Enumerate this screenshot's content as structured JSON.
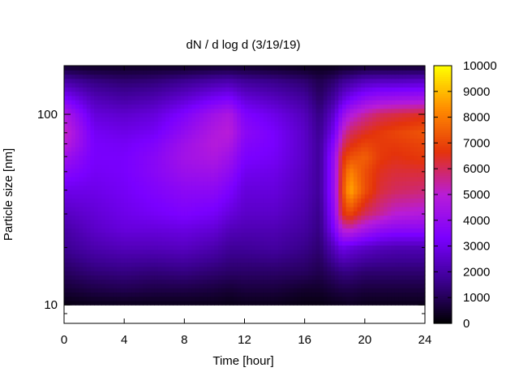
{
  "chart_data": {
    "type": "heatmap",
    "title": "dN / d log d (3/19/19)",
    "xlabel": "Time [hour]",
    "ylabel": "Particle size [nm]",
    "xlim": [
      0,
      24
    ],
    "ylim": [
      8,
      180
    ],
    "y_scale": "log",
    "x_ticks": [
      "0",
      "4",
      "8",
      "12",
      "16",
      "20",
      "24"
    ],
    "x_tick_values": [
      0,
      4,
      8,
      12,
      16,
      20,
      24
    ],
    "y_ticks": [
      "10",
      "100"
    ],
    "y_tick_values": [
      10,
      100
    ],
    "colorbar": {
      "range": [
        0,
        10000
      ],
      "ticks": [
        "0",
        "1000",
        "2000",
        "3000",
        "4000",
        "5000",
        "6000",
        "7000",
        "8000",
        "9000",
        "10000"
      ],
      "tick_values": [
        0,
        1000,
        2000,
        3000,
        4000,
        5000,
        6000,
        7000,
        8000,
        9000,
        10000
      ],
      "colormap": "gnuplot",
      "colors": [
        "#000000",
        "#3b0090",
        "#7a00ff",
        "#b81cd8",
        "#e4330b",
        "#ff8c00",
        "#ffff00"
      ]
    },
    "times": [
      0,
      2,
      4,
      6,
      8,
      10,
      11,
      12,
      14,
      16,
      17,
      18,
      18.5,
      19,
      20,
      21,
      22,
      24
    ],
    "sizes": [
      10,
      12,
      15,
      20,
      25,
      30,
      40,
      50,
      60,
      70,
      80,
      100,
      120,
      150,
      180
    ],
    "values": [
      [
        200,
        300,
        300,
        300,
        300,
        300,
        250,
        300,
        300,
        200,
        200,
        300,
        300,
        400,
        300,
        300,
        300,
        300
      ],
      [
        600,
        800,
        900,
        800,
        800,
        700,
        600,
        700,
        700,
        500,
        500,
        700,
        800,
        800,
        700,
        700,
        700,
        700
      ],
      [
        1100,
        1400,
        1500,
        1400,
        1500,
        1300,
        1200,
        1200,
        1200,
        1100,
        900,
        1300,
        1500,
        1500,
        1300,
        1300,
        1300,
        1300
      ],
      [
        1700,
        2100,
        2300,
        2300,
        2400,
        2100,
        1800,
        1800,
        1900,
        1600,
        1300,
        2400,
        3000,
        2800,
        2500,
        2300,
        2200,
        2200
      ],
      [
        2000,
        2500,
        2800,
        2800,
        2900,
        2700,
        2300,
        2200,
        2200,
        1900,
        1500,
        3500,
        5000,
        5200,
        4500,
        4000,
        3800,
        3800
      ],
      [
        2400,
        2700,
        3000,
        3200,
        3400,
        3200,
        2800,
        2500,
        2500,
        2100,
        1600,
        4000,
        6500,
        7000,
        6000,
        5500,
        5000,
        4800
      ],
      [
        3000,
        3000,
        3200,
        3500,
        3800,
        3800,
        3400,
        2800,
        2800,
        2300,
        1800,
        4300,
        7000,
        8800,
        7200,
        6300,
        6000,
        5800
      ],
      [
        3700,
        3200,
        3300,
        3700,
        4200,
        4300,
        3900,
        3100,
        3000,
        2400,
        1800,
        4300,
        6800,
        8200,
        7200,
        6500,
        6300,
        6300
      ],
      [
        4300,
        3300,
        3300,
        3700,
        4400,
        4700,
        4300,
        3400,
        3200,
        2500,
        1800,
        4200,
        6500,
        7200,
        7500,
        6800,
        6600,
        6800
      ],
      [
        5000,
        3300,
        3200,
        3500,
        4300,
        4900,
        4700,
        3600,
        3300,
        2500,
        1800,
        3800,
        5800,
        6500,
        7000,
        6800,
        6800,
        7000
      ],
      [
        5300,
        3200,
        3000,
        3200,
        4000,
        4800,
        5000,
        3800,
        3300,
        2500,
        1700,
        3300,
        5200,
        6000,
        6500,
        6800,
        7000,
        7300
      ],
      [
        4800,
        2800,
        2600,
        2800,
        3500,
        4400,
        4700,
        3500,
        3000,
        2300,
        1500,
        2700,
        4000,
        4800,
        5500,
        6000,
        6200,
        6500
      ],
      [
        3500,
        2300,
        2000,
        2200,
        2700,
        3300,
        3500,
        2800,
        2400,
        1900,
        1200,
        2000,
        2800,
        3300,
        4000,
        4300,
        4400,
        4500
      ],
      [
        2000,
        1500,
        1300,
        1400,
        1700,
        2000,
        2100,
        1800,
        1600,
        1300,
        900,
        1300,
        1700,
        1900,
        2300,
        2400,
        2400,
        2500
      ],
      [
        500,
        400,
        400,
        400,
        400,
        500,
        500,
        500,
        400,
        300,
        300,
        300,
        400,
        400,
        500,
        500,
        500,
        500
      ]
    ]
  }
}
